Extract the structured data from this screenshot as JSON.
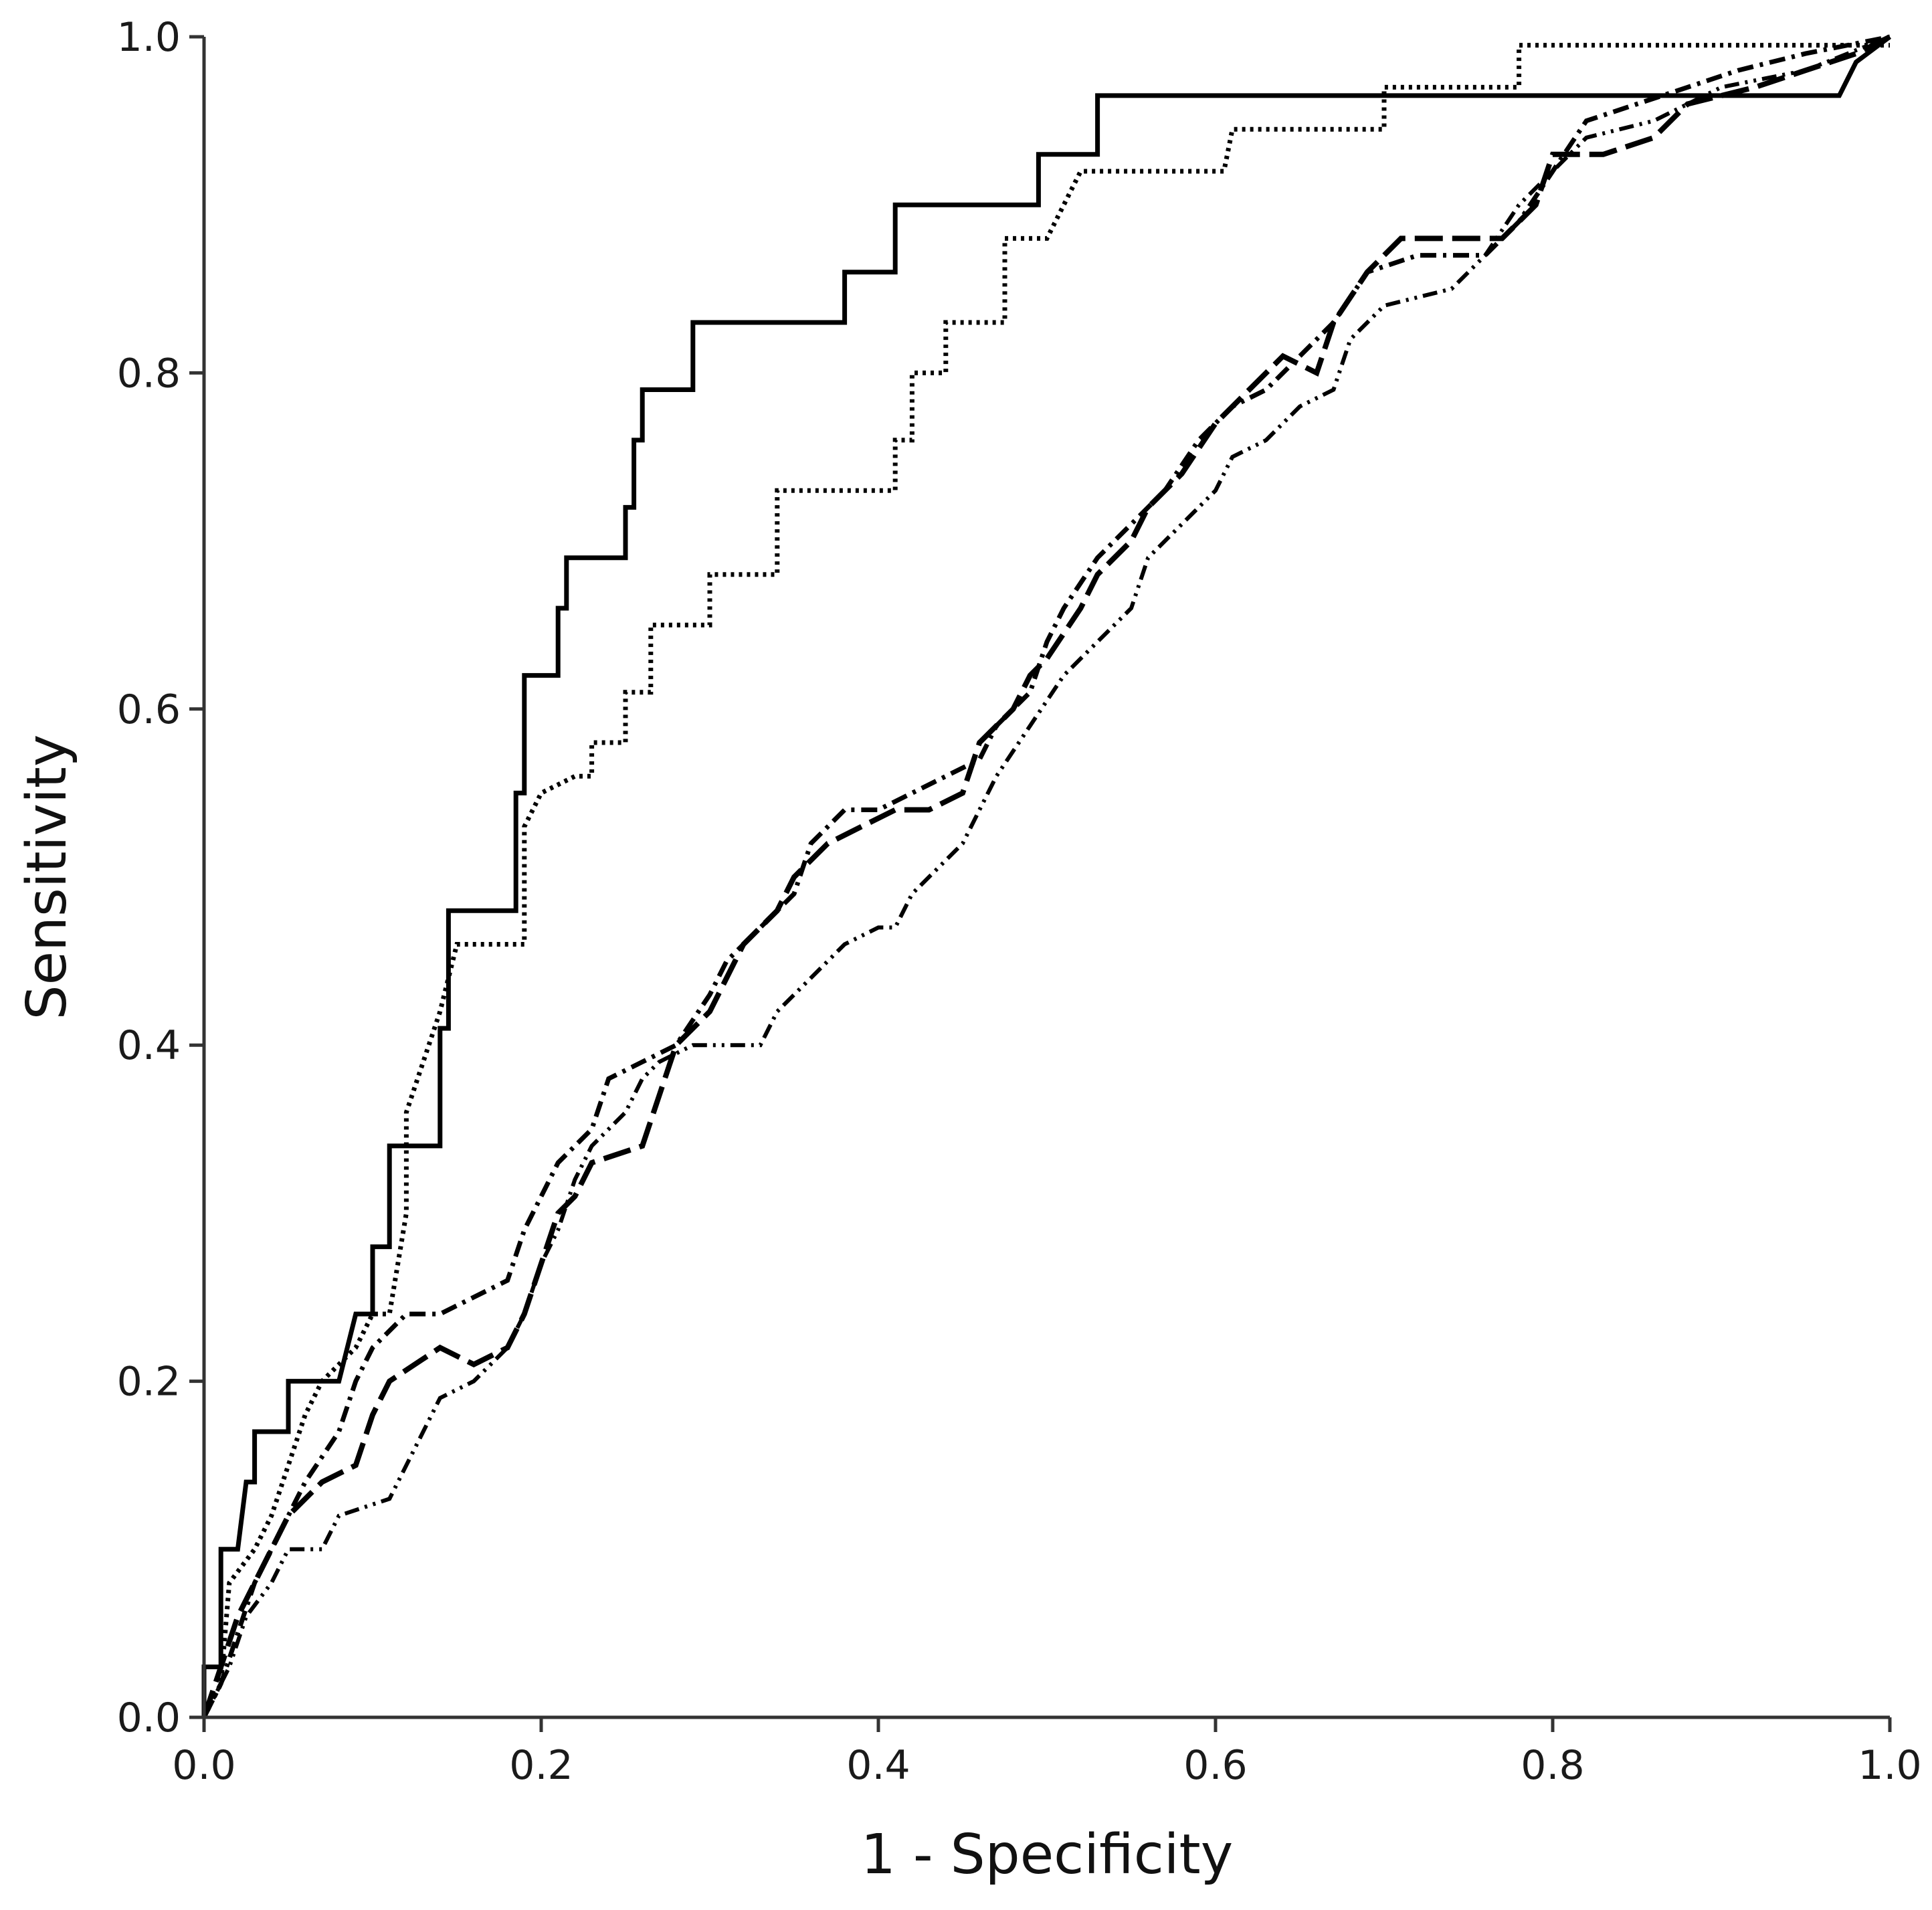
{
  "chart_data": {
    "type": "line",
    "title": "",
    "xlabel": "1 - Specificity",
    "ylabel": "Sensitivity",
    "xlim": [
      0,
      1
    ],
    "ylim": [
      0,
      1
    ],
    "xticks": [
      "0.0",
      "0.2",
      "0.4",
      "0.6",
      "0.8",
      "1.0"
    ],
    "yticks": [
      "0.0",
      "0.2",
      "0.4",
      "0.6",
      "0.8",
      "1.0"
    ],
    "grid": false,
    "legend": "none",
    "series": [
      {
        "name": "solid",
        "style": "solid",
        "points": [
          [
            0,
            0
          ],
          [
            0,
            0.03
          ],
          [
            0.01,
            0.03
          ],
          [
            0.01,
            0.1
          ],
          [
            0.02,
            0.1
          ],
          [
            0.025,
            0.14
          ],
          [
            0.03,
            0.14
          ],
          [
            0.03,
            0.17
          ],
          [
            0.05,
            0.17
          ],
          [
            0.05,
            0.2
          ],
          [
            0.08,
            0.2
          ],
          [
            0.09,
            0.24
          ],
          [
            0.1,
            0.24
          ],
          [
            0.1,
            0.28
          ],
          [
            0.11,
            0.28
          ],
          [
            0.11,
            0.34
          ],
          [
            0.14,
            0.34
          ],
          [
            0.14,
            0.41
          ],
          [
            0.145,
            0.41
          ],
          [
            0.145,
            0.48
          ],
          [
            0.185,
            0.48
          ],
          [
            0.185,
            0.55
          ],
          [
            0.19,
            0.55
          ],
          [
            0.19,
            0.62
          ],
          [
            0.21,
            0.62
          ],
          [
            0.21,
            0.66
          ],
          [
            0.215,
            0.66
          ],
          [
            0.215,
            0.69
          ],
          [
            0.25,
            0.69
          ],
          [
            0.25,
            0.72
          ],
          [
            0.255,
            0.72
          ],
          [
            0.255,
            0.76
          ],
          [
            0.26,
            0.76
          ],
          [
            0.26,
            0.79
          ],
          [
            0.29,
            0.79
          ],
          [
            0.29,
            0.83
          ],
          [
            0.38,
            0.83
          ],
          [
            0.38,
            0.86
          ],
          [
            0.41,
            0.86
          ],
          [
            0.41,
            0.9
          ],
          [
            0.495,
            0.9
          ],
          [
            0.495,
            0.93
          ],
          [
            0.53,
            0.93
          ],
          [
            0.53,
            0.965
          ],
          [
            0.97,
            0.965
          ],
          [
            0.98,
            0.985
          ],
          [
            1,
            1
          ]
        ]
      },
      {
        "name": "dotted",
        "style": "dotted",
        "points": [
          [
            0,
            0
          ],
          [
            0.01,
            0.02
          ],
          [
            0.015,
            0.08
          ],
          [
            0.03,
            0.1
          ],
          [
            0.04,
            0.12
          ],
          [
            0.05,
            0.15
          ],
          [
            0.06,
            0.18
          ],
          [
            0.07,
            0.2
          ],
          [
            0.09,
            0.22
          ],
          [
            0.1,
            0.24
          ],
          [
            0.11,
            0.24
          ],
          [
            0.12,
            0.3
          ],
          [
            0.12,
            0.36
          ],
          [
            0.13,
            0.39
          ],
          [
            0.14,
            0.42
          ],
          [
            0.145,
            0.44
          ],
          [
            0.15,
            0.46
          ],
          [
            0.19,
            0.46
          ],
          [
            0.19,
            0.53
          ],
          [
            0.2,
            0.55
          ],
          [
            0.22,
            0.56
          ],
          [
            0.23,
            0.56
          ],
          [
            0.23,
            0.58
          ],
          [
            0.25,
            0.58
          ],
          [
            0.25,
            0.61
          ],
          [
            0.265,
            0.61
          ],
          [
            0.265,
            0.65
          ],
          [
            0.3,
            0.65
          ],
          [
            0.3,
            0.68
          ],
          [
            0.34,
            0.68
          ],
          [
            0.34,
            0.73
          ],
          [
            0.41,
            0.73
          ],
          [
            0.41,
            0.76
          ],
          [
            0.42,
            0.76
          ],
          [
            0.42,
            0.8
          ],
          [
            0.44,
            0.8
          ],
          [
            0.44,
            0.83
          ],
          [
            0.475,
            0.83
          ],
          [
            0.475,
            0.88
          ],
          [
            0.5,
            0.88
          ],
          [
            0.51,
            0.9
          ],
          [
            0.52,
            0.92
          ],
          [
            0.605,
            0.92
          ],
          [
            0.61,
            0.945
          ],
          [
            0.7,
            0.945
          ],
          [
            0.7,
            0.97
          ],
          [
            0.78,
            0.97
          ],
          [
            0.78,
            0.995
          ],
          [
            1,
            0.995
          ]
        ]
      },
      {
        "name": "long-dash",
        "style": "longdash",
        "points": [
          [
            0,
            0
          ],
          [
            0.01,
            0.03
          ],
          [
            0.02,
            0.06
          ],
          [
            0.03,
            0.08
          ],
          [
            0.04,
            0.1
          ],
          [
            0.05,
            0.12
          ],
          [
            0.07,
            0.14
          ],
          [
            0.09,
            0.15
          ],
          [
            0.1,
            0.18
          ],
          [
            0.11,
            0.2
          ],
          [
            0.14,
            0.22
          ],
          [
            0.16,
            0.21
          ],
          [
            0.18,
            0.22
          ],
          [
            0.19,
            0.24
          ],
          [
            0.2,
            0.27
          ],
          [
            0.21,
            0.3
          ],
          [
            0.22,
            0.31
          ],
          [
            0.23,
            0.33
          ],
          [
            0.26,
            0.34
          ],
          [
            0.27,
            0.37
          ],
          [
            0.28,
            0.4
          ],
          [
            0.3,
            0.42
          ],
          [
            0.31,
            0.44
          ],
          [
            0.32,
            0.46
          ],
          [
            0.34,
            0.48
          ],
          [
            0.35,
            0.5
          ],
          [
            0.37,
            0.52
          ],
          [
            0.39,
            0.53
          ],
          [
            0.41,
            0.54
          ],
          [
            0.43,
            0.54
          ],
          [
            0.45,
            0.55
          ],
          [
            0.46,
            0.58
          ],
          [
            0.48,
            0.6
          ],
          [
            0.49,
            0.62
          ],
          [
            0.5,
            0.63
          ],
          [
            0.52,
            0.66
          ],
          [
            0.53,
            0.68
          ],
          [
            0.55,
            0.7
          ],
          [
            0.56,
            0.72
          ],
          [
            0.58,
            0.74
          ],
          [
            0.6,
            0.77
          ],
          [
            0.62,
            0.79
          ],
          [
            0.64,
            0.81
          ],
          [
            0.66,
            0.8
          ],
          [
            0.67,
            0.83
          ],
          [
            0.69,
            0.86
          ],
          [
            0.71,
            0.88
          ],
          [
            0.77,
            0.88
          ],
          [
            0.79,
            0.9
          ],
          [
            0.8,
            0.93
          ],
          [
            0.83,
            0.93
          ],
          [
            0.86,
            0.94
          ],
          [
            0.88,
            0.96
          ],
          [
            0.92,
            0.97
          ],
          [
            0.95,
            0.98
          ],
          [
            0.98,
            0.99
          ],
          [
            1,
            1
          ]
        ]
      },
      {
        "name": "dash-dot",
        "style": "dashdot",
        "points": [
          [
            0,
            0
          ],
          [
            0.01,
            0.02
          ],
          [
            0.02,
            0.05
          ],
          [
            0.03,
            0.08
          ],
          [
            0.04,
            0.1
          ],
          [
            0.05,
            0.12
          ],
          [
            0.06,
            0.14
          ],
          [
            0.08,
            0.17
          ],
          [
            0.09,
            0.2
          ],
          [
            0.1,
            0.22
          ],
          [
            0.12,
            0.24
          ],
          [
            0.14,
            0.24
          ],
          [
            0.16,
            0.25
          ],
          [
            0.18,
            0.26
          ],
          [
            0.19,
            0.29
          ],
          [
            0.2,
            0.31
          ],
          [
            0.21,
            0.33
          ],
          [
            0.23,
            0.35
          ],
          [
            0.24,
            0.38
          ],
          [
            0.26,
            0.39
          ],
          [
            0.28,
            0.4
          ],
          [
            0.3,
            0.43
          ],
          [
            0.31,
            0.45
          ],
          [
            0.33,
            0.47
          ],
          [
            0.35,
            0.49
          ],
          [
            0.36,
            0.52
          ],
          [
            0.38,
            0.54
          ],
          [
            0.4,
            0.54
          ],
          [
            0.42,
            0.55
          ],
          [
            0.44,
            0.56
          ],
          [
            0.46,
            0.57
          ],
          [
            0.47,
            0.59
          ],
          [
            0.49,
            0.61
          ],
          [
            0.5,
            0.64
          ],
          [
            0.51,
            0.66
          ],
          [
            0.53,
            0.69
          ],
          [
            0.55,
            0.71
          ],
          [
            0.57,
            0.73
          ],
          [
            0.59,
            0.76
          ],
          [
            0.61,
            0.78
          ],
          [
            0.63,
            0.79
          ],
          [
            0.65,
            0.81
          ],
          [
            0.67,
            0.83
          ],
          [
            0.69,
            0.86
          ],
          [
            0.72,
            0.87
          ],
          [
            0.76,
            0.87
          ],
          [
            0.78,
            0.89
          ],
          [
            0.8,
            0.92
          ],
          [
            0.82,
            0.95
          ],
          [
            0.85,
            0.96
          ],
          [
            0.88,
            0.97
          ],
          [
            0.91,
            0.98
          ],
          [
            0.95,
            0.99
          ],
          [
            1,
            1
          ]
        ]
      },
      {
        "name": "dash-dot-dot",
        "style": "dashdotdot",
        "points": [
          [
            0,
            0
          ],
          [
            0.015,
            0.03
          ],
          [
            0.025,
            0.06
          ],
          [
            0.04,
            0.08
          ],
          [
            0.05,
            0.1
          ],
          [
            0.07,
            0.1
          ],
          [
            0.08,
            0.12
          ],
          [
            0.11,
            0.13
          ],
          [
            0.12,
            0.15
          ],
          [
            0.13,
            0.17
          ],
          [
            0.14,
            0.19
          ],
          [
            0.16,
            0.2
          ],
          [
            0.18,
            0.22
          ],
          [
            0.19,
            0.24
          ],
          [
            0.2,
            0.27
          ],
          [
            0.21,
            0.29
          ],
          [
            0.22,
            0.32
          ],
          [
            0.23,
            0.34
          ],
          [
            0.25,
            0.36
          ],
          [
            0.26,
            0.38
          ],
          [
            0.27,
            0.39
          ],
          [
            0.29,
            0.4
          ],
          [
            0.33,
            0.4
          ],
          [
            0.34,
            0.42
          ],
          [
            0.36,
            0.44
          ],
          [
            0.38,
            0.46
          ],
          [
            0.4,
            0.47
          ],
          [
            0.41,
            0.47
          ],
          [
            0.42,
            0.49
          ],
          [
            0.44,
            0.51
          ],
          [
            0.45,
            0.52
          ],
          [
            0.46,
            0.54
          ],
          [
            0.47,
            0.56
          ],
          [
            0.49,
            0.59
          ],
          [
            0.51,
            0.62
          ],
          [
            0.53,
            0.64
          ],
          [
            0.55,
            0.66
          ],
          [
            0.56,
            0.69
          ],
          [
            0.58,
            0.71
          ],
          [
            0.6,
            0.73
          ],
          [
            0.61,
            0.75
          ],
          [
            0.63,
            0.76
          ],
          [
            0.65,
            0.78
          ],
          [
            0.67,
            0.79
          ],
          [
            0.68,
            0.82
          ],
          [
            0.7,
            0.84
          ],
          [
            0.74,
            0.85
          ],
          [
            0.76,
            0.87
          ],
          [
            0.78,
            0.9
          ],
          [
            0.8,
            0.92
          ],
          [
            0.82,
            0.94
          ],
          [
            0.86,
            0.95
          ],
          [
            0.9,
            0.97
          ],
          [
            0.95,
            0.98
          ],
          [
            1,
            1
          ]
        ]
      }
    ]
  }
}
